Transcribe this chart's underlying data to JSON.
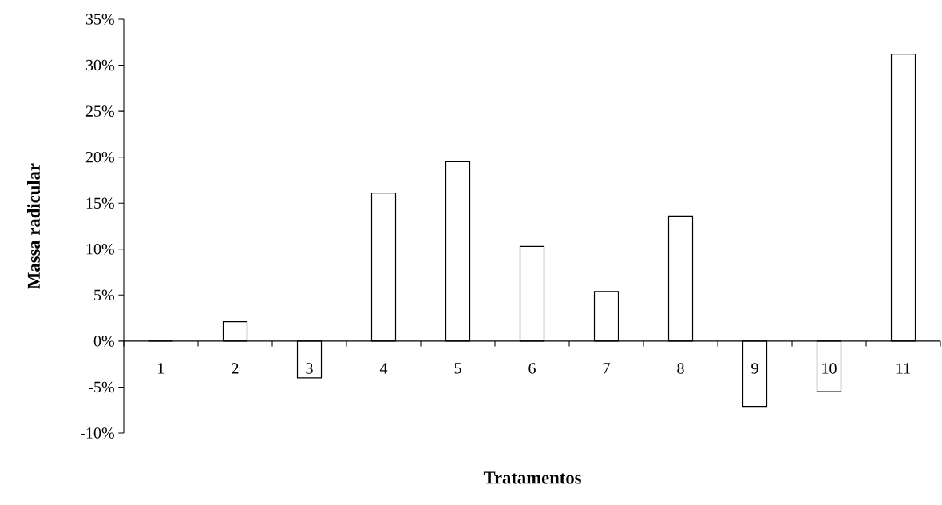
{
  "chart_data": {
    "type": "bar",
    "xlabel": "Tratamentos",
    "ylabel": "Massa radicular",
    "categories": [
      "1",
      "2",
      "3",
      "4",
      "5",
      "6",
      "7",
      "8",
      "9",
      "10",
      "11"
    ],
    "values": [
      0,
      2.1,
      -4.0,
      16.1,
      19.5,
      10.3,
      5.4,
      13.6,
      -7.1,
      -5.5,
      31.2
    ],
    "color": "#ffffff",
    "ylim": [
      -10,
      35
    ],
    "yticks": [
      {
        "value": -10,
        "label": "-10%"
      },
      {
        "value": -5,
        "label": "-5%"
      },
      {
        "value": 0,
        "label": "0%"
      },
      {
        "value": 5,
        "label": "5%"
      },
      {
        "value": 10,
        "label": "10%"
      },
      {
        "value": 15,
        "label": "15%"
      },
      {
        "value": 20,
        "label": "20%"
      },
      {
        "value": 25,
        "label": "25%"
      },
      {
        "value": 30,
        "label": "30%"
      },
      {
        "value": 35,
        "label": "35%"
      }
    ]
  }
}
